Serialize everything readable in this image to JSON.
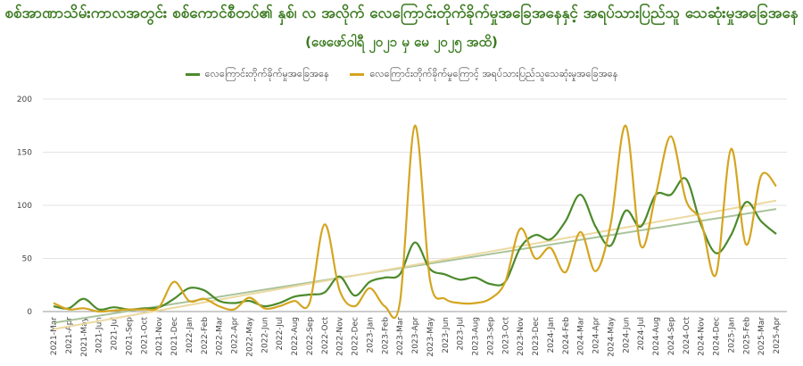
{
  "header": {
    "title": "စစ်အာဏာသိမ်းကာလအတွင်း စစ်ကောင်စီတပ်၏ နှစ်၊ လ အလိုက် လေကြောင်းတိုက်ခိုက်မှုအခြေအနေနှင့် အရပ်သားပြည်သူ သေဆုံးမှုအခြေအနေ",
    "subtitle": "(ဖေဖော်ဝါရီ ၂၀၂၁ မှ မေ ၂၀၂၅ အထိ)"
  },
  "colors": {
    "series1": "#4c8a2b",
    "series2": "#d4a520",
    "trend1": "#a9c39a",
    "trend2": "#ecd9a0",
    "grid": "#e3e3e3"
  },
  "chart_data": {
    "type": "line",
    "title": "စစ်အာဏာသိမ်းကာလအတွင်း စစ်ကောင်စီတပ်၏ နှစ်၊ လ အလိုက် လေကြောင်းတိုက်ခိုက်မှုအခြေအနေနှင့် အရပ်သားပြည်သူ သေဆုံးမှုအခြေအနေ",
    "subtitle": "(ဖေဖော်ဝါရီ ၂၀၂၁ မှ မေ ၂၀၂၅ အထိ)",
    "legend_position": "top",
    "grid": true,
    "ylim": [
      0,
      200
    ],
    "yticks": [
      0,
      50,
      100,
      150,
      200
    ],
    "trendlines": true,
    "x": [
      "2021-Mar",
      "2021-Apr",
      "2021-May",
      "2021-Jun",
      "2021-Jul",
      "2021-Sep",
      "2021-Oct",
      "2021-Nov",
      "2021-Dec",
      "2022-Jan",
      "2022-Feb",
      "2022-Mar",
      "2022-Apr",
      "2022-May",
      "2022-Jun",
      "2022-Jul",
      "2022-Aug",
      "2022-Sep",
      "2022-Oct",
      "2022-Nov",
      "2022-Dec",
      "2023-Jan",
      "2023-Feb",
      "2023-Mar",
      "2023-Apr",
      "2023-May",
      "2023-Jun",
      "2023-Jul",
      "2023-Aug",
      "2023-Sep",
      "2023-Oct",
      "2023-Nov",
      "2023-Dec",
      "2024-Jan",
      "2024-Feb",
      "2024-Mar",
      "2024-Apr",
      "2024-May",
      "2024-Jun",
      "2024-Jul",
      "2024-Aug",
      "2024-Sep",
      "2024-Oct",
      "2024-Nov",
      "2024-Dec",
      "2025-Jan",
      "2025-Feb",
      "2025-Mar",
      "2025-Apr"
    ],
    "series": [
      {
        "name": "လေကြောင်းတိုက်ခိုက်မှုအခြေအနေ",
        "values": [
          5,
          3,
          12,
          2,
          4,
          2,
          3,
          4,
          12,
          22,
          20,
          10,
          8,
          10,
          5,
          8,
          14,
          16,
          18,
          33,
          15,
          28,
          32,
          35,
          65,
          40,
          35,
          30,
          32,
          26,
          28,
          60,
          72,
          68,
          85,
          110,
          80,
          62,
          95,
          80,
          110,
          110,
          125,
          82,
          55,
          72,
          103,
          85,
          73
        ]
      },
      {
        "name": "လေကြောင်းတိုက်ခိုက်မှုကြောင့် အရပ်သားပြည်သူသေဆုံးမှုအခြေအနေ",
        "values": [
          8,
          2,
          3,
          0,
          1,
          2,
          2,
          4,
          28,
          10,
          12,
          5,
          2,
          13,
          3,
          5,
          10,
          8,
          82,
          20,
          5,
          22,
          5,
          8,
          175,
          30,
          12,
          8,
          8,
          12,
          28,
          78,
          50,
          60,
          37,
          75,
          38,
          82,
          175,
          62,
          110,
          165,
          105,
          85,
          35,
          153,
          63,
          128,
          118
        ]
      }
    ]
  }
}
